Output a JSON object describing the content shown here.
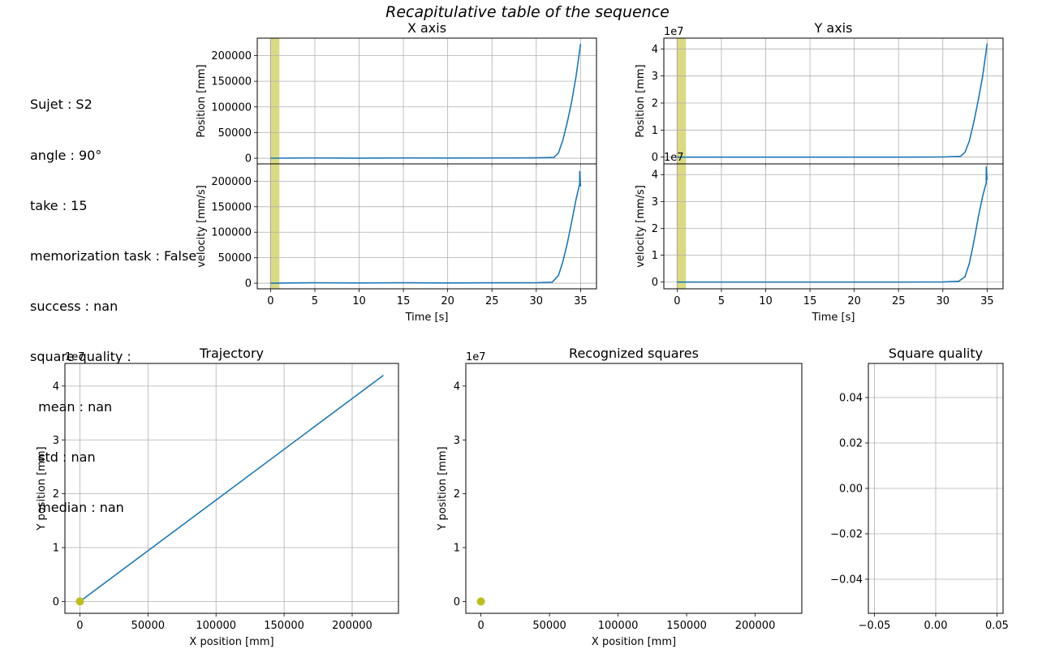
{
  "figure": {
    "title": "Recapitulative table of the sequence"
  },
  "info_lines": [
    "Sujet : S2",
    "angle : 90°",
    "take : 15",
    "memorization task : False",
    "success : nan",
    "square quality :",
    "  mean : nan",
    "  std : nan",
    "  median : nan"
  ],
  "colors": {
    "line": "#1f77b4",
    "span": "#d4d370",
    "marker": "#bcbd22",
    "vline": "#e08a6e",
    "grid": "#b0b0b0"
  },
  "chart_data": [
    {
      "id": "x-position",
      "type": "line",
      "title": "X axis",
      "xlabel": "",
      "ylabel": "Position [mm]",
      "xlim": [
        -1.5,
        36.8
      ],
      "ylim": [
        -11000,
        234000
      ],
      "xticks": [
        0,
        5,
        10,
        15,
        20,
        25,
        30,
        35
      ],
      "yticks": [
        0,
        50000,
        100000,
        150000,
        200000
      ],
      "ytick_labels": [
        "0",
        "50000",
        "100000",
        "150000",
        "200000"
      ],
      "show_xtick_labels": false,
      "scale_label": "",
      "span": [
        0,
        1.0
      ],
      "x": [
        0,
        5,
        10,
        15,
        20,
        25,
        30,
        32,
        32.5,
        33,
        33.5,
        34,
        34.5,
        35
      ],
      "values": [
        0,
        500,
        300,
        600,
        400,
        500,
        700,
        1500,
        10000,
        35000,
        70000,
        110000,
        160000,
        223000
      ]
    },
    {
      "id": "x-velocity",
      "type": "line",
      "title": "",
      "xlabel": "Time [s]",
      "ylabel": "velocity [mm/s]",
      "xlim": [
        -1.5,
        36.8
      ],
      "ylim": [
        -11000,
        234000
      ],
      "xticks": [
        0,
        5,
        10,
        15,
        20,
        25,
        30,
        35
      ],
      "yticks": [
        0,
        50000,
        100000,
        150000,
        200000
      ],
      "ytick_labels": [
        "0",
        "50000",
        "100000",
        "150000",
        "200000"
      ],
      "show_xtick_labels": true,
      "scale_label": "",
      "span": [
        0,
        1.0
      ],
      "x": [
        0,
        5,
        10,
        15,
        20,
        25,
        30,
        31.8,
        32.5,
        33,
        33.5,
        34,
        34.5,
        34.9,
        34.9,
        35
      ],
      "values": [
        0,
        1000,
        500,
        1000,
        500,
        800,
        1000,
        2000,
        15000,
        42000,
        78000,
        120000,
        165000,
        195000,
        220000,
        190000
      ]
    },
    {
      "id": "y-position",
      "type": "line",
      "title": "Y axis",
      "xlabel": "",
      "ylabel": "Position [mm]",
      "xlim": [
        -1.5,
        36.8
      ],
      "ylim": [
        -0.25,
        4.4
      ],
      "xticks": [
        0,
        5,
        10,
        15,
        20,
        25,
        30,
        35
      ],
      "yticks": [
        0,
        1,
        2,
        3,
        4
      ],
      "ytick_labels": [
        "0",
        "1",
        "2",
        "3",
        "4"
      ],
      "show_xtick_labels": false,
      "scale_label": "1e7",
      "span": [
        0,
        1.0
      ],
      "x": [
        0,
        5,
        10,
        15,
        20,
        25,
        30,
        32,
        32.5,
        33,
        33.5,
        34,
        34.5,
        35
      ],
      "values": [
        0,
        0,
        0,
        0,
        0,
        0,
        0.005,
        0.03,
        0.18,
        0.6,
        1.3,
        2.1,
        3.0,
        4.2
      ]
    },
    {
      "id": "y-velocity",
      "type": "line",
      "title": "",
      "xlabel": "Time [s]",
      "ylabel": "velocity [mm/s]",
      "xlim": [
        -1.5,
        36.8
      ],
      "ylim": [
        -0.25,
        4.4
      ],
      "xticks": [
        0,
        5,
        10,
        15,
        20,
        25,
        30,
        35
      ],
      "yticks": [
        0,
        1,
        2,
        3,
        4
      ],
      "ytick_labels": [
        "0",
        "1",
        "2",
        "3",
        "4"
      ],
      "show_xtick_labels": true,
      "scale_label": "1e7",
      "span": [
        0,
        1.0
      ],
      "x": [
        0,
        5,
        10,
        15,
        20,
        25,
        30,
        31.8,
        32.5,
        33,
        33.5,
        34,
        34.5,
        34.9,
        34.9,
        35
      ],
      "values": [
        0,
        0,
        0,
        0,
        0,
        0,
        0.005,
        0.03,
        0.2,
        0.7,
        1.5,
        2.4,
        3.2,
        3.7,
        4.3,
        3.8
      ]
    },
    {
      "id": "trajectory",
      "type": "line",
      "title": "Trajectory",
      "xlabel": "X position [mm]",
      "ylabel": "Y position [mm]",
      "xlim": [
        -11000,
        234000
      ],
      "ylim": [
        -0.22,
        4.42
      ],
      "xticks": [
        0,
        50000,
        100000,
        150000,
        200000
      ],
      "xtick_labels": [
        "0",
        "50000",
        "100000",
        "150000",
        "200000"
      ],
      "yticks": [
        0,
        1,
        2,
        3,
        4
      ],
      "ytick_labels": [
        "0",
        "1",
        "2",
        "3",
        "4"
      ],
      "show_xtick_labels": true,
      "scale_label": "1e7",
      "marker": [
        0,
        0
      ],
      "x": [
        0,
        223000
      ],
      "values": [
        0,
        4.2
      ]
    },
    {
      "id": "recognized",
      "type": "scatter",
      "title": "Recognized squares",
      "xlabel": "X position [mm]",
      "ylabel": "Y position [mm]",
      "xlim": [
        -11000,
        234000
      ],
      "ylim": [
        -0.22,
        4.42
      ],
      "xticks": [
        0,
        50000,
        100000,
        150000,
        200000
      ],
      "xtick_labels": [
        "0",
        "50000",
        "100000",
        "150000",
        "200000"
      ],
      "yticks": [
        0,
        1,
        2,
        3,
        4
      ],
      "ytick_labels": [
        "0",
        "1",
        "2",
        "3",
        "4"
      ],
      "show_xtick_labels": true,
      "scale_label": "1e7",
      "grid": false,
      "marker": [
        0,
        0
      ]
    },
    {
      "id": "quality",
      "type": "line",
      "title": "Square quality",
      "xlabel": "",
      "ylabel": "",
      "xlim": [
        -0.055,
        0.055
      ],
      "ylim": [
        -0.055,
        0.055
      ],
      "xticks": [
        -0.05,
        0,
        0.05
      ],
      "xtick_labels": [
        "−0.05",
        "0.00",
        "0.05"
      ],
      "yticks": [
        -0.04,
        -0.02,
        0,
        0.02,
        0.04
      ],
      "ytick_labels": [
        "−0.04",
        "−0.02",
        "0.00",
        "0.02",
        "0.04"
      ],
      "show_xtick_labels": true,
      "scale_label": ""
    }
  ]
}
